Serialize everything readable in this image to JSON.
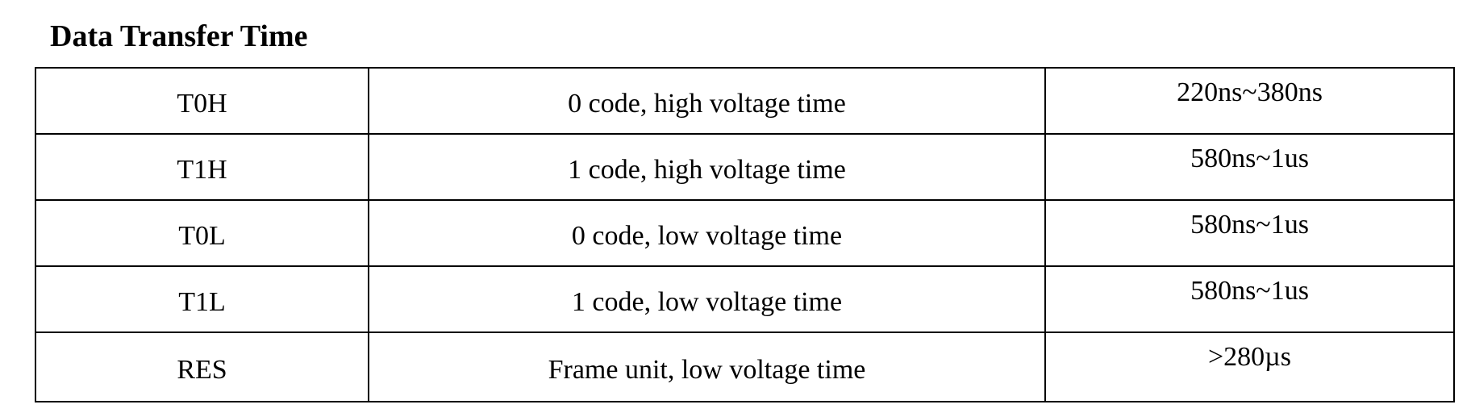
{
  "title": "Data Transfer Time",
  "rows": [
    {
      "symbol": "T0H",
      "description": "0 code, high voltage time",
      "value": "220ns~380ns"
    },
    {
      "symbol": "T1H",
      "description": "1 code, high voltage time",
      "value": "580ns~1us"
    },
    {
      "symbol": "T0L",
      "description": "0 code, low voltage time",
      "value": "580ns~1us"
    },
    {
      "symbol": "T1L",
      "description": "1 code, low voltage time",
      "value": "580ns~1us"
    },
    {
      "symbol": "RES",
      "description": "Frame unit, low voltage time",
      "value": ">280µs"
    }
  ]
}
